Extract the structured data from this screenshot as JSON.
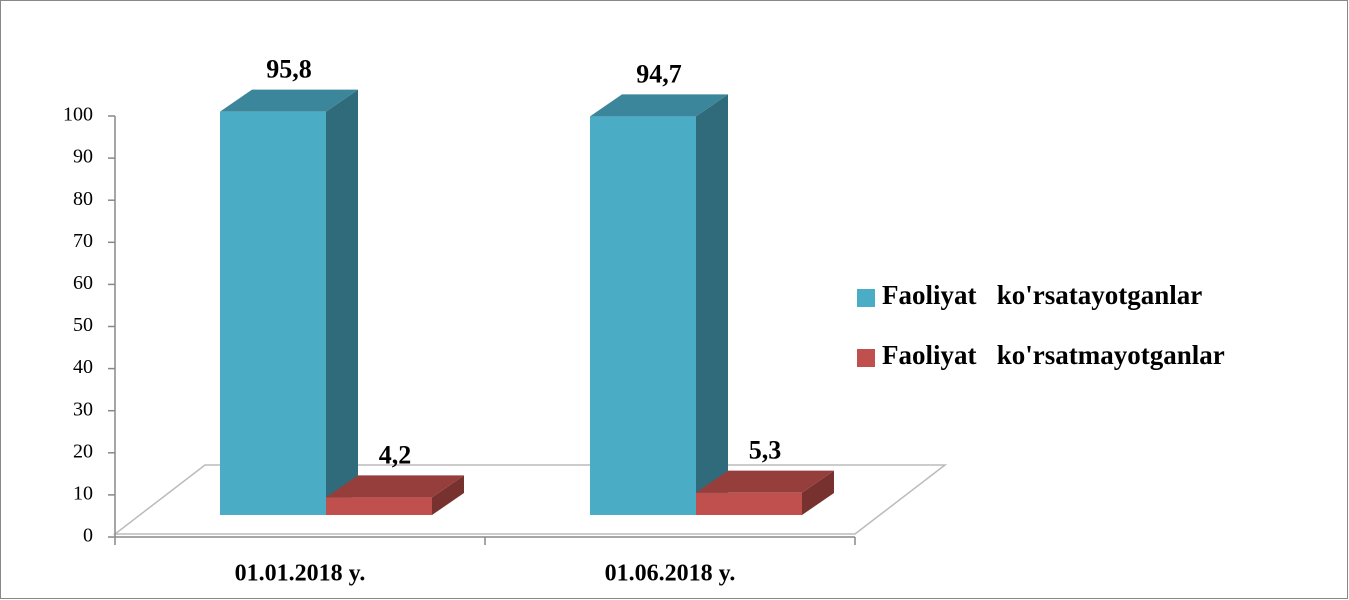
{
  "chart_data": {
    "type": "bar3d",
    "categories": [
      "01.01.2018 y.",
      "01.06.2018 y."
    ],
    "series": [
      {
        "name": "Faoliyat   ko'rsatayotganlar",
        "color": "#4bacc6",
        "values": [
          95.8,
          94.7
        ],
        "value_labels": [
          "95,8",
          "94,7"
        ]
      },
      {
        "name": "Faoliyat   ko'rsatmayotganlar",
        "color": "#c0504d",
        "values": [
          4.2,
          5.3
        ],
        "value_labels": [
          "4,2",
          "5,3"
        ]
      }
    ],
    "ylim": [
      0,
      100
    ],
    "yticks": [
      0,
      10,
      20,
      30,
      40,
      50,
      60,
      70,
      80,
      90,
      100
    ],
    "legend": "right"
  }
}
